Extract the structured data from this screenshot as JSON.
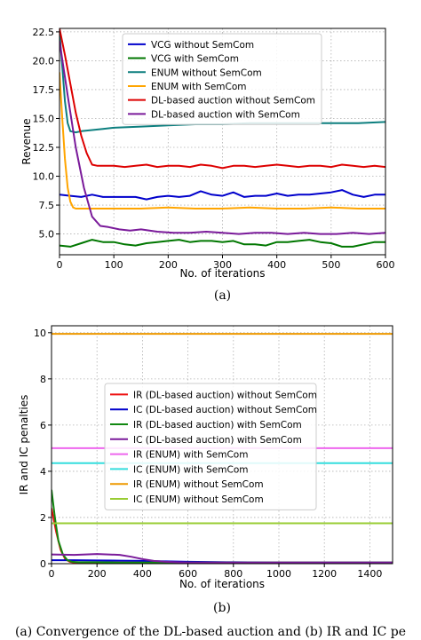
{
  "chart_data": [
    {
      "type": "line",
      "title": "",
      "subcaption": "(a)",
      "xlabel": "No. of iterations",
      "ylabel": "Revenue",
      "xlim": [
        0,
        600
      ],
      "ylim": [
        3.2,
        22.8
      ],
      "xticks": [
        "0",
        "100",
        "200",
        "300",
        "400",
        "500",
        "600"
      ],
      "yticks": [
        "5.0",
        "7.5",
        "10.0",
        "12.5",
        "15.0",
        "17.5",
        "20.0",
        "22.5"
      ],
      "grid": true,
      "legend_position": "upper-right",
      "series": [
        {
          "name": "VCG without SemCom",
          "color": "#0000cc",
          "x": [
            0,
            20,
            40,
            60,
            80,
            100,
            120,
            140,
            160,
            180,
            200,
            220,
            240,
            260,
            280,
            300,
            320,
            340,
            360,
            380,
            400,
            420,
            440,
            460,
            480,
            500,
            520,
            540,
            560,
            580,
            600
          ],
          "y": [
            8.4,
            8.3,
            8.2,
            8.4,
            8.2,
            8.2,
            8.2,
            8.2,
            8.0,
            8.2,
            8.3,
            8.2,
            8.3,
            8.7,
            8.4,
            8.3,
            8.6,
            8.2,
            8.3,
            8.3,
            8.5,
            8.3,
            8.4,
            8.4,
            8.5,
            8.6,
            8.8,
            8.4,
            8.2,
            8.4,
            8.4
          ]
        },
        {
          "name": "VCG with SemCom",
          "color": "#007700",
          "x": [
            0,
            20,
            40,
            60,
            80,
            100,
            120,
            140,
            160,
            180,
            200,
            220,
            240,
            260,
            280,
            300,
            320,
            340,
            360,
            380,
            400,
            420,
            440,
            460,
            480,
            500,
            520,
            540,
            560,
            580,
            600
          ],
          "y": [
            4.0,
            3.9,
            4.2,
            4.5,
            4.3,
            4.3,
            4.1,
            4.0,
            4.2,
            4.3,
            4.4,
            4.5,
            4.3,
            4.4,
            4.4,
            4.3,
            4.4,
            4.1,
            4.1,
            4.0,
            4.3,
            4.3,
            4.4,
            4.5,
            4.3,
            4.2,
            3.9,
            3.9,
            4.1,
            4.3,
            4.3
          ]
        },
        {
          "name": "ENUM without SemCom",
          "color": "#0d7f7f",
          "x": [
            0,
            5,
            10,
            15,
            20,
            30,
            40,
            60,
            80,
            100,
            150,
            200,
            250,
            300,
            350,
            400,
            450,
            500,
            550,
            600
          ],
          "y": [
            22.5,
            19.5,
            16.5,
            14.6,
            13.9,
            13.8,
            13.9,
            14.0,
            14.1,
            14.2,
            14.3,
            14.4,
            14.5,
            14.5,
            14.6,
            14.6,
            14.6,
            14.6,
            14.6,
            14.7
          ]
        },
        {
          "name": "ENUM with SemCom",
          "color": "#ffa500",
          "x": [
            0,
            5,
            10,
            15,
            20,
            25,
            30,
            40,
            60,
            80,
            100,
            150,
            200,
            250,
            300,
            350,
            400,
            450,
            500,
            550,
            600
          ],
          "y": [
            19.0,
            15.0,
            11.5,
            9.0,
            7.8,
            7.3,
            7.2,
            7.2,
            7.2,
            7.2,
            7.2,
            7.2,
            7.3,
            7.2,
            7.2,
            7.3,
            7.2,
            7.2,
            7.3,
            7.2,
            7.2
          ]
        },
        {
          "name": "DL-based auction without SemCom",
          "color": "#dd0000",
          "x": [
            0,
            10,
            20,
            30,
            40,
            50,
            60,
            70,
            80,
            100,
            120,
            140,
            160,
            180,
            200,
            220,
            240,
            260,
            280,
            300,
            320,
            340,
            360,
            380,
            400,
            420,
            440,
            460,
            480,
            500,
            520,
            540,
            560,
            580,
            600
          ],
          "y": [
            22.8,
            20.5,
            18.0,
            15.5,
            13.5,
            12.0,
            11.0,
            10.9,
            10.9,
            10.9,
            10.8,
            10.9,
            11.0,
            10.8,
            10.9,
            10.9,
            10.8,
            11.0,
            10.9,
            10.7,
            10.9,
            10.9,
            10.8,
            10.9,
            11.0,
            10.9,
            10.8,
            10.9,
            10.9,
            10.8,
            11.0,
            10.9,
            10.8,
            10.9,
            10.8
          ]
        },
        {
          "name": "DL-based auction with SemCom",
          "color": "#7a1a9a",
          "x": [
            0,
            15,
            30,
            45,
            60,
            75,
            90,
            110,
            130,
            150,
            180,
            210,
            240,
            270,
            300,
            330,
            360,
            390,
            420,
            450,
            480,
            510,
            540,
            570,
            600
          ],
          "y": [
            21.7,
            17.0,
            12.5,
            9.0,
            6.5,
            5.7,
            5.6,
            5.4,
            5.3,
            5.4,
            5.2,
            5.1,
            5.1,
            5.2,
            5.1,
            5.0,
            5.1,
            5.1,
            5.0,
            5.1,
            5.0,
            5.0,
            5.1,
            5.0,
            5.1
          ]
        }
      ]
    },
    {
      "type": "line",
      "title": "",
      "subcaption": "(b)",
      "xlabel": "No. of iterations",
      "ylabel": "IR and IC penalties",
      "xlim": [
        0,
        1500
      ],
      "ylim": [
        0,
        10.3
      ],
      "xticks": [
        "0",
        "200",
        "400",
        "600",
        "800",
        "1000",
        "1200",
        "1400"
      ],
      "yticks": [
        "0",
        "2",
        "4",
        "6",
        "8",
        "10"
      ],
      "grid": true,
      "legend_position": "center-right",
      "series": [
        {
          "name": "IR (DL-based auction) without SemCom",
          "color": "#ee1111",
          "x": [
            0,
            20,
            40,
            60,
            80,
            100,
            150,
            200,
            300,
            400,
            500,
            600,
            800,
            1000,
            1200,
            1400,
            1500
          ],
          "y": [
            2.4,
            1.4,
            0.6,
            0.2,
            0.08,
            0.05,
            0.05,
            0.05,
            0.05,
            0.05,
            0.05,
            0.05,
            0.05,
            0.05,
            0.05,
            0.05,
            0.05
          ]
        },
        {
          "name": "IC (DL-based auction) without SemCom",
          "color": "#0000cc",
          "x": [
            0,
            100,
            200,
            300,
            400,
            500,
            600,
            800,
            1000,
            1200,
            1400,
            1500
          ],
          "y": [
            0.15,
            0.15,
            0.14,
            0.13,
            0.12,
            0.1,
            0.08,
            0.06,
            0.05,
            0.05,
            0.05,
            0.05
          ]
        },
        {
          "name": "IR (DL-based auction) with SemCom",
          "color": "#118811",
          "x": [
            0,
            15,
            30,
            50,
            70,
            90,
            120,
            200,
            300,
            400,
            600,
            800,
            1000,
            1200,
            1400,
            1500
          ],
          "y": [
            3.2,
            2.0,
            1.0,
            0.4,
            0.15,
            0.08,
            0.06,
            0.06,
            0.05,
            0.05,
            0.05,
            0.05,
            0.05,
            0.05,
            0.05,
            0.05
          ]
        },
        {
          "name": "IC (DL-based auction) with SemCom",
          "color": "#7a1a9a",
          "x": [
            0,
            100,
            200,
            300,
            350,
            400,
            450,
            500,
            550,
            600,
            800,
            1000,
            1200,
            1400,
            1500
          ],
          "y": [
            0.4,
            0.38,
            0.42,
            0.38,
            0.3,
            0.2,
            0.12,
            0.08,
            0.06,
            0.05,
            0.05,
            0.05,
            0.05,
            0.05,
            0.05
          ]
        },
        {
          "name": "IR (ENUM) with SemCom",
          "color": "#ee66ee",
          "x": [
            0,
            1500
          ],
          "y": [
            5.0,
            5.0
          ]
        },
        {
          "name": "IC (ENUM) with SemCom",
          "color": "#33dddd",
          "x": [
            0,
            1500
          ],
          "y": [
            4.35,
            4.35
          ]
        },
        {
          "name": "IR (ENUM) without SemCom",
          "color": "#ee9900",
          "x": [
            0,
            1500
          ],
          "y": [
            9.95,
            9.95
          ]
        },
        {
          "name": "IC (ENUM) without SemCom",
          "color": "#99cc33",
          "x": [
            0,
            1500
          ],
          "y": [
            1.75,
            1.75
          ]
        }
      ]
    }
  ],
  "caption": "(a) Convergence of the DL-based auction and (b) IR and IC pe"
}
